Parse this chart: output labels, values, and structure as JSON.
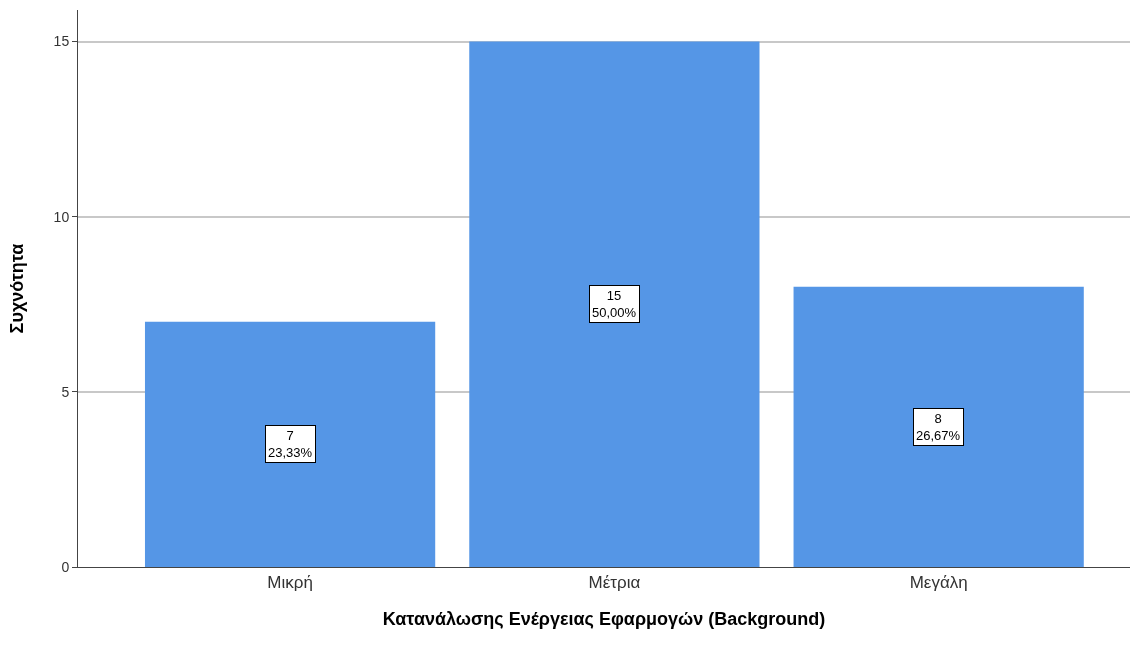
{
  "chart_data": {
    "type": "bar",
    "xlabel": "Κατανάλωσης Ενέργειας Εφαρμογών (Background)",
    "ylabel": "Συχνότητα",
    "categories": [
      "Μικρή",
      "Μέτρια",
      "Μεγάλη"
    ],
    "values": [
      7,
      15,
      8
    ],
    "value_labels": [
      "7\n23,33%",
      "15\n50,00%",
      "8\n26,67%"
    ],
    "color": "#5596e6",
    "ylim": [
      0,
      15.9
    ],
    "yticks": [
      0,
      5,
      10,
      15
    ],
    "grid": "y"
  }
}
